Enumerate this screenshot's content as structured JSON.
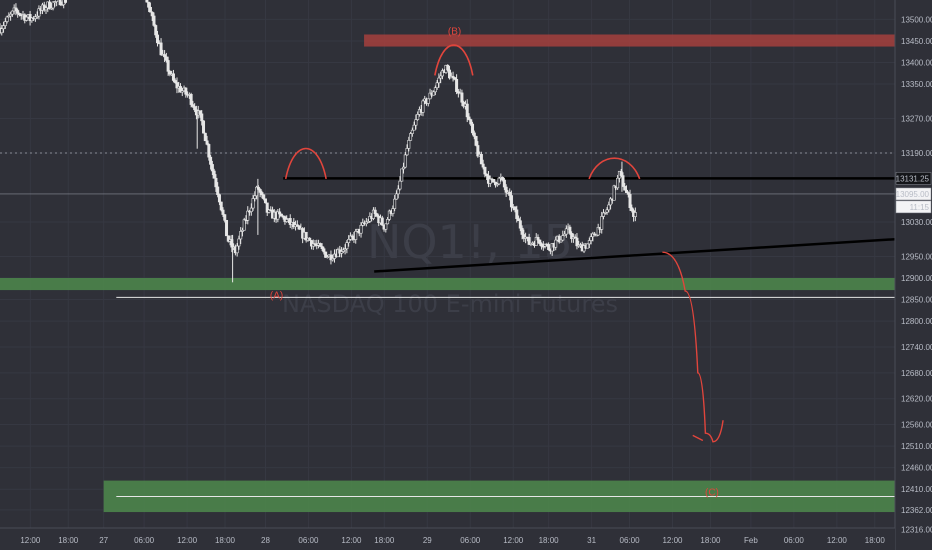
{
  "chart_data": {
    "type": "candlestick",
    "title": "",
    "watermark": {
      "symbol": "NQ1!, 15",
      "name": "NASDAQ 100 E-mini Futures"
    },
    "colors": {
      "background": "#2f3038",
      "candle": "#e6e6e6",
      "resistance_zone": "#a5403d",
      "support_zone": "#4e8a4c",
      "annotation": "#e1453c",
      "trendline": "#000000"
    },
    "y_axis": {
      "ylim": [
        12320,
        13545
      ],
      "ticks": [
        {
          "value": 13500,
          "label": "13500.00"
        },
        {
          "value": 13450,
          "label": "13450.00"
        },
        {
          "value": 13400,
          "label": "13400.00"
        },
        {
          "value": 13350,
          "label": "13350.00"
        },
        {
          "value": 13270,
          "label": "13270.00"
        },
        {
          "value": 13190,
          "label": "13190.00"
        },
        {
          "value": 13030,
          "label": "13030.00"
        },
        {
          "value": 12950,
          "label": "12950.00"
        },
        {
          "value": 12900,
          "label": "12900.00"
        },
        {
          "value": 12850,
          "label": "12850.00"
        },
        {
          "value": 12800,
          "label": "12800.00"
        },
        {
          "value": 12740,
          "label": "12740.00"
        },
        {
          "value": 12680,
          "label": "12680.00"
        },
        {
          "value": 12620,
          "label": "12620.00"
        },
        {
          "value": 12560,
          "label": "12560.00"
        },
        {
          "value": 12510,
          "label": "12510.00"
        },
        {
          "value": 12460,
          "label": "12460.00"
        },
        {
          "value": 12410,
          "label": "12410.00"
        },
        {
          "value": 12362,
          "label": "12362.00"
        },
        {
          "value": 12316,
          "label": "12316.00"
        }
      ],
      "price_tags": [
        {
          "value": 13131.25,
          "label": "13131.25",
          "style": "dark"
        },
        {
          "value": 13095,
          "label": "13095.00",
          "style": "light"
        },
        {
          "value": 13065,
          "label": "11:15",
          "style": "light"
        }
      ]
    },
    "x_axis": {
      "ticks": [
        {
          "t": 0.6,
          "label": "12:00"
        },
        {
          "t": 1.35,
          "label": "18:00"
        },
        {
          "t": 2.05,
          "label": "27"
        },
        {
          "t": 2.85,
          "label": "06:00"
        },
        {
          "t": 3.7,
          "label": "12:00"
        },
        {
          "t": 4.45,
          "label": "18:00"
        },
        {
          "t": 5.25,
          "label": "28"
        },
        {
          "t": 6.1,
          "label": "06:00"
        },
        {
          "t": 6.95,
          "label": "12:00"
        },
        {
          "t": 7.6,
          "label": "18:00"
        },
        {
          "t": 8.45,
          "label": "29"
        },
        {
          "t": 9.3,
          "label": "06:00"
        },
        {
          "t": 10.15,
          "label": "12:00"
        },
        {
          "t": 10.85,
          "label": "18:00"
        },
        {
          "t": 11.7,
          "label": "31"
        },
        {
          "t": 12.45,
          "label": "06:00"
        },
        {
          "t": 13.3,
          "label": "12:00"
        },
        {
          "t": 14.05,
          "label": "18:00"
        },
        {
          "t": 14.85,
          "label": "Feb"
        },
        {
          "t": 15.7,
          "label": "06:00"
        },
        {
          "t": 16.55,
          "label": "12:00"
        },
        {
          "t": 17.3,
          "label": "18:00"
        }
      ],
      "tlim": [
        0,
        17.7
      ]
    },
    "price_path": [
      [
        0.0,
        13480
      ],
      [
        0.3,
        13520
      ],
      [
        0.6,
        13500
      ],
      [
        0.9,
        13530
      ],
      [
        1.2,
        13545
      ],
      [
        2.9,
        13545
      ],
      [
        3.2,
        13420
      ],
      [
        3.45,
        13350
      ],
      [
        3.75,
        13320
      ],
      [
        4.0,
        13260
      ],
      [
        4.2,
        13150
      ],
      [
        4.35,
        13080
      ],
      [
        4.5,
        12990
      ],
      [
        4.65,
        12960
      ],
      [
        4.9,
        13050
      ],
      [
        5.1,
        13110
      ],
      [
        5.3,
        13050
      ],
      [
        5.6,
        13040
      ],
      [
        5.9,
        13010
      ],
      [
        6.2,
        12980
      ],
      [
        6.5,
        12950
      ],
      [
        6.8,
        12970
      ],
      [
        7.1,
        13010
      ],
      [
        7.4,
        13050
      ],
      [
        7.6,
        13020
      ],
      [
        7.85,
        13090
      ],
      [
        8.05,
        13200
      ],
      [
        8.3,
        13290
      ],
      [
        8.55,
        13330
      ],
      [
        8.8,
        13390
      ],
      [
        9.0,
        13350
      ],
      [
        9.2,
        13300
      ],
      [
        9.35,
        13230
      ],
      [
        9.5,
        13170
      ],
      [
        9.7,
        13120
      ],
      [
        9.9,
        13130
      ],
      [
        10.05,
        13090
      ],
      [
        10.25,
        13030
      ],
      [
        10.45,
        12980
      ],
      [
        10.65,
        12990
      ],
      [
        10.85,
        12970
      ],
      [
        11.05,
        12990
      ],
      [
        11.25,
        13010
      ],
      [
        11.45,
        12970
      ],
      [
        11.65,
        12980
      ],
      [
        11.85,
        13020
      ],
      [
        12.05,
        13070
      ],
      [
        12.25,
        13140
      ],
      [
        12.35,
        13110
      ],
      [
        12.5,
        13060
      ],
      [
        12.55,
        13030
      ],
      [
        12.6,
        13080
      ]
    ],
    "zones": [
      {
        "name": "resistance",
        "y_top": 13465,
        "y_bottom": 13437,
        "t_start": 7.2,
        "t_end": 17.7,
        "color": "#a5403d"
      },
      {
        "name": "support-upper",
        "y_top": 12900,
        "y_bottom": 12872,
        "t_start": 0,
        "t_end": 17.7,
        "color": "#4e8a4c"
      },
      {
        "name": "support-lower",
        "y_top": 12430,
        "y_bottom": 12357,
        "t_start": 2.05,
        "t_end": 17.7,
        "color": "#4e8a4c"
      }
    ],
    "hlines": [
      {
        "y": 13131.25,
        "t_start": 5.6,
        "t_end": 17.7,
        "color": "#000000",
        "width": 2.5
      },
      {
        "y": 12855,
        "t_start": 2.3,
        "t_end": 17.7,
        "color": "#e6e6e6",
        "width": 1
      },
      {
        "y": 12393,
        "t_start": 2.3,
        "t_end": 17.7,
        "color": "#e6e6e6",
        "width": 1
      },
      {
        "y": 13190,
        "t_start": 0,
        "t_end": 17.7,
        "color": "#8a8d96",
        "width": 1,
        "dashed": true
      },
      {
        "y": 13095,
        "t_start": 0,
        "t_end": 17.7,
        "color": "#8a8d96",
        "width": 0.6
      }
    ],
    "trendline": {
      "from": [
        7.4,
        12915
      ],
      "to": [
        17.7,
        12990
      ]
    },
    "labels": [
      {
        "text": "(A)",
        "t": 5.47,
        "y": 12852
      },
      {
        "text": "(B)",
        "t": 8.99,
        "y": 13465
      },
      {
        "text": "(C)",
        "t": 14.08,
        "y": 12395
      }
    ],
    "arcs": [
      {
        "t1": 5.65,
        "t2": 6.45,
        "y_base": 13130,
        "y_peak": 13210
      },
      {
        "t1": 8.6,
        "t2": 9.35,
        "y_base": 13370,
        "y_peak": 13450
      },
      {
        "t1": 11.65,
        "t2": 12.65,
        "y_base": 13130,
        "y_peak": 13180
      }
    ],
    "projection": [
      [
        13.1,
        12960
      ],
      [
        13.55,
        12870
      ],
      [
        13.8,
        12680
      ],
      [
        13.95,
        12540
      ],
      [
        14.1,
        12520
      ],
      [
        14.3,
        12570
      ]
    ],
    "projection_tick": [
      [
        13.7,
        12535
      ],
      [
        13.9,
        12523
      ]
    ]
  }
}
